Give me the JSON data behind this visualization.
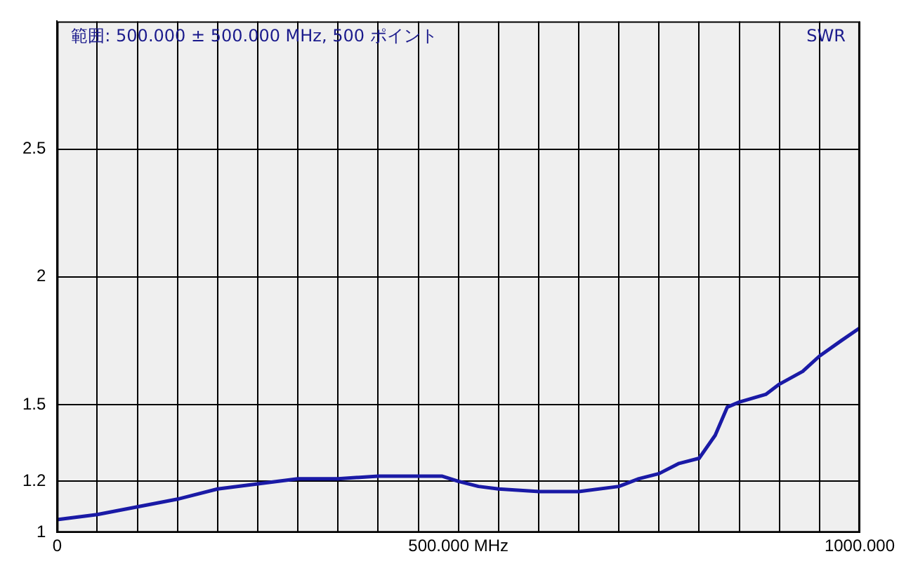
{
  "chart_data": {
    "type": "line",
    "annotations": [
      "範囲: 500.000 ± 500.000 MHz, 500 ポイント",
      "SWR"
    ],
    "x": [
      0,
      50,
      100,
      150,
      200,
      250,
      300,
      350,
      400,
      450,
      480,
      500,
      525,
      550,
      600,
      650,
      700,
      725,
      750,
      775,
      800,
      820,
      835,
      850,
      883,
      900,
      929,
      950,
      977,
      1000
    ],
    "series": [
      {
        "color": "#1a1aa6",
        "values": [
          1.05,
          1.07,
          1.1,
          1.13,
          1.17,
          1.19,
          1.21,
          1.21,
          1.22,
          1.22,
          1.22,
          1.2,
          1.18,
          1.17,
          1.16,
          1.16,
          1.18,
          1.21,
          1.23,
          1.27,
          1.29,
          1.38,
          1.49,
          1.51,
          1.54,
          1.58,
          1.63,
          1.69,
          1.75,
          1.8
        ]
      }
    ],
    "xlim": [
      0,
      1000
    ],
    "xticks": [
      0,
      {
        "value": 50,
        "label": null
      },
      {
        "value": 100,
        "label": null
      },
      {
        "value": 150,
        "label": null
      },
      {
        "value": 200,
        "label": null
      },
      {
        "value": 250,
        "label": null
      },
      {
        "value": 300,
        "label": null
      },
      {
        "value": 350,
        "label": null
      },
      {
        "value": 400,
        "label": null
      },
      {
        "value": 450,
        "label": null
      },
      {
        "value": 500,
        "label": "500.000 MHz"
      },
      {
        "value": 550,
        "label": null
      },
      {
        "value": 600,
        "label": null
      },
      {
        "value": 650,
        "label": null
      },
      {
        "value": 700,
        "label": null
      },
      {
        "value": 750,
        "label": null
      },
      {
        "value": 800,
        "label": null
      },
      {
        "value": 850,
        "label": null
      },
      {
        "value": 900,
        "label": null
      },
      {
        "value": 950,
        "label": null
      },
      {
        "value": 1000,
        "label": "1000.000"
      }
    ],
    "ylim": [
      1,
      3
    ],
    "yticks": [
      1,
      1.2,
      1.5,
      2,
      2.5
    ],
    "grid": true,
    "marker": "none",
    "line_style": "solid"
  }
}
